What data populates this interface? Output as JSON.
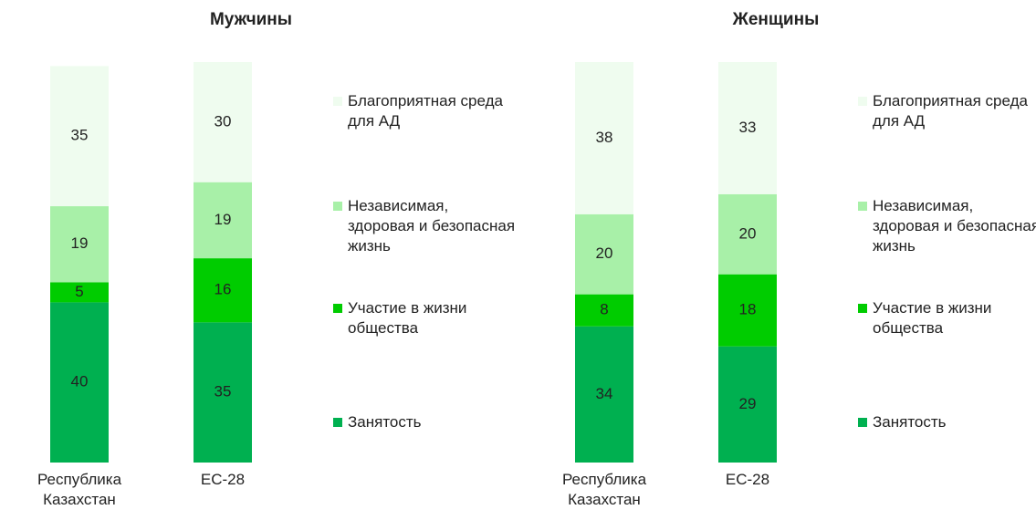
{
  "chart_data": [
    {
      "type": "bar",
      "stacked": true,
      "title": "Мужчины",
      "categories": [
        "Республика Казахстан",
        "ЕС-28"
      ],
      "ylim": [
        0,
        100
      ],
      "series": [
        {
          "name": "Занятость",
          "color": "#00b050",
          "values": [
            40,
            35
          ]
        },
        {
          "name": "Участие в жизни общества",
          "color": "#00cc00",
          "values": [
            5,
            16
          ]
        },
        {
          "name": "Независимая, здоровая и безопасная жизнь",
          "color": "#a8f0a8",
          "values": [
            19,
            19
          ]
        },
        {
          "name": "Благоприятная среда для АД",
          "color": "#effcef",
          "values": [
            35,
            30
          ]
        }
      ]
    },
    {
      "type": "bar",
      "stacked": true,
      "title": "Женщины",
      "categories": [
        "Республика Казахстан",
        "ЕС-28"
      ],
      "ylim": [
        0,
        100
      ],
      "series": [
        {
          "name": "Занятость",
          "color": "#00b050",
          "values": [
            34,
            29
          ]
        },
        {
          "name": "Участие в жизни общества",
          "color": "#00cc00",
          "values": [
            8,
            18
          ]
        },
        {
          "name": "Независимая, здоровая и безопасная жизнь",
          "color": "#a8f0a8",
          "values": [
            20,
            20
          ]
        },
        {
          "name": "Благоприятная среда для АД",
          "color": "#effcef",
          "values": [
            38,
            33
          ]
        }
      ]
    }
  ]
}
